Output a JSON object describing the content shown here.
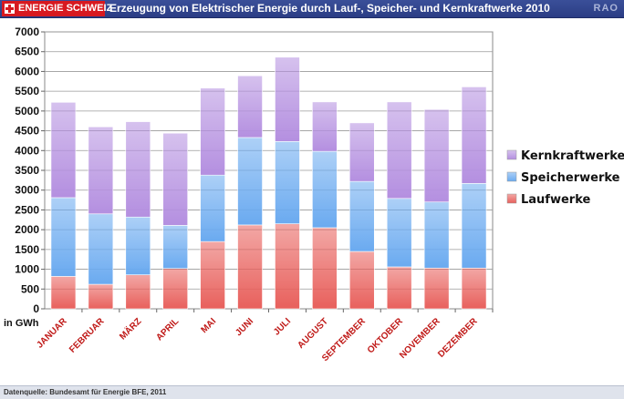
{
  "header": {
    "brand": "ENERGIE SCHWEIZ",
    "title_prefix": "Erzeugung von Elektrischer Energie durch Lauf-, Speicher- und Kernkraftwerke",
    "year": "2010",
    "logo_text": "RAO"
  },
  "footer": {
    "source": "Datenquelle: Bundesamt für Energie BFE, 2011"
  },
  "colors": {
    "laufwerke": "#e8605c",
    "speicherwerke": "#6aaaf0",
    "kernkraftwerke": "#b48fe0"
  },
  "chart_data": {
    "type": "bar",
    "stacked": true,
    "title": "Erzeugung von Elektrischer Energie durch Lauf-, Speicher- und Kernkraftwerke 2010",
    "ylabel": "in GWh",
    "ylim": [
      0,
      7000
    ],
    "yticks": [
      0,
      500,
      1000,
      1500,
      2000,
      2500,
      3000,
      3500,
      4000,
      4500,
      5000,
      5500,
      6000,
      6500,
      7000
    ],
    "grid": true,
    "legend_position": "right",
    "categories": [
      "JANUAR",
      "FEBRUAR",
      "MÄRZ",
      "APRIL",
      "MAI",
      "JUNI",
      "JULI",
      "AUGUST",
      "SEPTEMBER",
      "OKTOBER",
      "NOVEMBER",
      "DEZEMBER"
    ],
    "series": [
      {
        "name": "Laufwerke",
        "values": [
          820,
          620,
          860,
          1020,
          1700,
          2120,
          2150,
          2050,
          1450,
          1060,
          1030,
          1030
        ]
      },
      {
        "name": "Speicherwerke",
        "values": [
          1990,
          1780,
          1460,
          1090,
          1680,
          2210,
          2080,
          1930,
          1770,
          1730,
          1670,
          2140
        ]
      },
      {
        "name": "Kernkraftwerke",
        "values": [
          2410,
          2200,
          2410,
          2330,
          2200,
          1560,
          2130,
          1250,
          1480,
          2440,
          2340,
          2440
        ]
      }
    ],
    "legend_order": [
      "Kernkraftwerke",
      "Speicherwerke",
      "Laufwerke"
    ]
  }
}
